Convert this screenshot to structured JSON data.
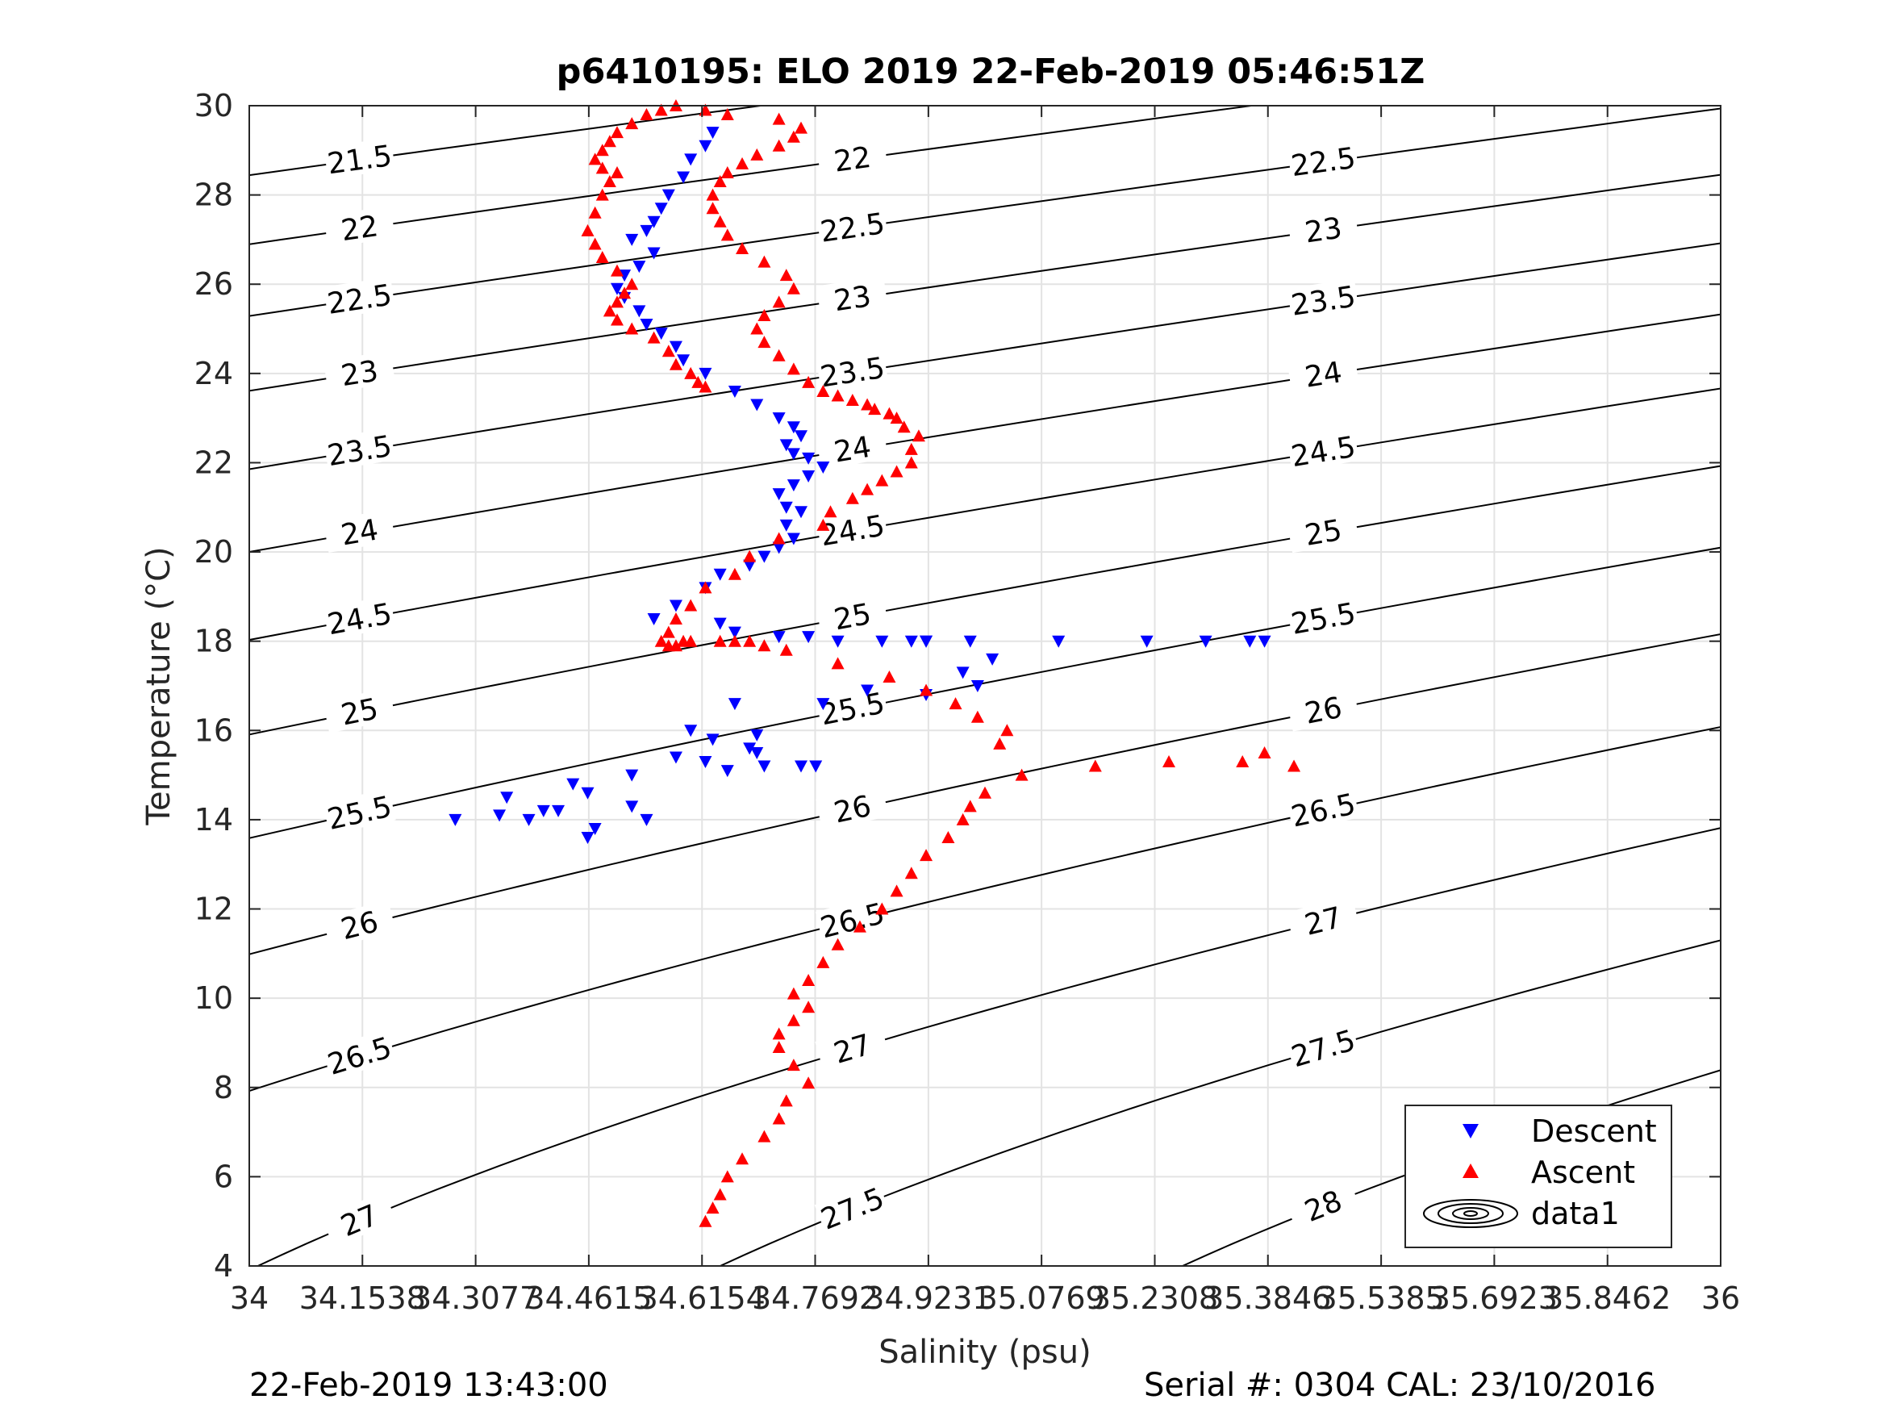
{
  "chart_data": {
    "type": "scatter",
    "title": "p6410195: ELO 2019 22-Feb-2019 05:46:51Z",
    "xlabel": "Salinity (psu)",
    "ylabel": "Temperature (°C)",
    "xlim": [
      34,
      36
    ],
    "ylim": [
      4,
      30
    ],
    "xticks": [
      34,
      34.1538,
      34.3077,
      34.4615,
      34.6154,
      34.7692,
      34.9231,
      35.0769,
      35.2308,
      35.3846,
      35.5385,
      35.6923,
      35.8462,
      36
    ],
    "xtick_labels": [
      "34",
      "34.1538",
      "34.3077",
      "34.4615",
      "34.6154",
      "34.7692",
      "34.9231",
      "35.0769",
      "35.2308",
      "35.3846",
      "35.5385",
      "35.6923",
      "35.8462",
      "36"
    ],
    "yticks": [
      4,
      6,
      8,
      10,
      12,
      14,
      16,
      18,
      20,
      22,
      24,
      26,
      28,
      30
    ],
    "ytick_labels": [
      "4",
      "6",
      "8",
      "10",
      "12",
      "14",
      "16",
      "18",
      "20",
      "22",
      "24",
      "26",
      "28",
      "30"
    ],
    "grid": true,
    "legend": {
      "position": "bottom-right",
      "entries": [
        {
          "label": "Descent",
          "marker": "triangle-down",
          "color": "#0000ff"
        },
        {
          "label": "Ascent",
          "marker": "triangle-up",
          "color": "#ff0000"
        },
        {
          "label": "data1",
          "marker": "contour",
          "color": "#000000"
        }
      ]
    },
    "contours": {
      "levels": [
        21.5,
        22,
        22.5,
        23,
        23.5,
        24,
        24.5,
        25,
        25.5,
        26,
        26.5,
        27,
        27.5,
        28
      ],
      "labels": [
        "21.5",
        "22",
        "22.5",
        "23",
        "23.5",
        "24",
        "24.5",
        "25",
        "25.5",
        "26",
        "26.5",
        "27",
        "27.5",
        "28"
      ],
      "color": "#000000"
    },
    "series": [
      {
        "name": "Descent",
        "marker": "triangle-down",
        "color": "#0000ff",
        "x": [
          34.63,
          34.62,
          34.6,
          34.59,
          34.57,
          34.56,
          34.55,
          34.54,
          34.52,
          34.55,
          34.53,
          34.51,
          34.5,
          34.51,
          34.53,
          34.54,
          34.56,
          34.58,
          34.59,
          34.62,
          34.66,
          34.69,
          34.72,
          34.74,
          34.75,
          34.73,
          34.74,
          34.76,
          34.78,
          34.76,
          34.74,
          34.72,
          34.73,
          34.75,
          34.73,
          34.74,
          34.72,
          34.7,
          34.68,
          34.64,
          34.62,
          34.58,
          34.55,
          34.64,
          34.66,
          34.72,
          34.76,
          34.8,
          34.86,
          34.92,
          34.9,
          34.92,
          34.98,
          35.1,
          35.22,
          35.3,
          35.36,
          35.38,
          35.01,
          34.97,
          34.99,
          34.92,
          34.84,
          34.78,
          34.69,
          34.68,
          34.63,
          34.6,
          34.58,
          34.62,
          34.65,
          34.7,
          34.75,
          34.77,
          34.69,
          34.66,
          34.52,
          34.44,
          34.42,
          34.38,
          34.46,
          34.47,
          34.35,
          34.34,
          34.28,
          34.4,
          34.46,
          34.54,
          34.52
        ],
        "y": [
          29.4,
          29.1,
          28.8,
          28.4,
          28.0,
          27.7,
          27.4,
          27.2,
          27.0,
          26.7,
          26.4,
          26.2,
          25.9,
          25.7,
          25.4,
          25.1,
          24.9,
          24.6,
          24.3,
          24.0,
          23.6,
          23.3,
          23.0,
          22.8,
          22.6,
          22.4,
          22.2,
          22.1,
          21.9,
          21.7,
          21.5,
          21.3,
          21.0,
          20.9,
          20.6,
          20.3,
          20.1,
          19.9,
          19.7,
          19.5,
          19.2,
          18.8,
          18.5,
          18.4,
          18.2,
          18.1,
          18.1,
          18.0,
          18.0,
          18.0,
          18.0,
          18.0,
          18.0,
          18.0,
          18.0,
          18.0,
          18.0,
          18.0,
          17.6,
          17.3,
          17.0,
          16.8,
          16.9,
          16.6,
          15.9,
          15.6,
          15.8,
          16.0,
          15.4,
          15.3,
          15.1,
          15.2,
          15.2,
          15.2,
          15.5,
          16.6,
          15.0,
          14.8,
          14.2,
          14.0,
          14.6,
          13.8,
          14.5,
          14.1,
          14.0,
          14.2,
          13.6,
          14.0,
          14.3
        ]
      },
      {
        "name": "Ascent",
        "marker": "triangle-up",
        "color": "#ff0000",
        "x": [
          34.62,
          34.63,
          34.64,
          34.65,
          34.67,
          34.7,
          34.72,
          34.73,
          34.76,
          34.74,
          34.72,
          34.72,
          34.74,
          34.76,
          34.74,
          34.76,
          34.78,
          34.8,
          34.83,
          34.86,
          34.88,
          34.9,
          34.92,
          34.95,
          34.97,
          34.98,
          35.0,
          35.05,
          35.15,
          35.25,
          35.35,
          35.42,
          35.38,
          35.02,
          35.03,
          34.99,
          34.96,
          34.92,
          34.87,
          34.8,
          34.73,
          34.7,
          34.68,
          34.66,
          34.64,
          34.6,
          34.59,
          34.58,
          34.57,
          34.56,
          34.57,
          34.58,
          34.6,
          34.62,
          34.66,
          34.68,
          34.72,
          34.78,
          34.79,
          34.82,
          34.84,
          34.86,
          34.88,
          34.9,
          34.9,
          34.91,
          34.89,
          34.88,
          34.87,
          34.85,
          34.84,
          34.82,
          34.8,
          34.78,
          34.76,
          34.74,
          34.72,
          34.7,
          34.69,
          34.7,
          34.72,
          34.74,
          34.73,
          34.7,
          34.67,
          34.65,
          34.64,
          34.63,
          34.63,
          34.64,
          34.65,
          34.67,
          34.69,
          34.72,
          34.74,
          34.75,
          34.72,
          34.65,
          34.62,
          34.58,
          34.56,
          34.54,
          34.52,
          34.5,
          34.49,
          34.48,
          34.47,
          34.48,
          34.5,
          34.49,
          34.48,
          34.47,
          34.46,
          34.47,
          34.48,
          34.5,
          34.52,
          34.51,
          34.5,
          34.49,
          34.5,
          34.52,
          34.55,
          34.57,
          34.58,
          34.6,
          34.61,
          34.62
        ],
        "y": [
          5.0,
          5.3,
          5.6,
          6.0,
          6.4,
          6.9,
          7.3,
          7.7,
          8.1,
          8.5,
          8.9,
          9.2,
          9.5,
          9.8,
          10.1,
          10.4,
          10.8,
          11.2,
          11.6,
          12.0,
          12.4,
          12.8,
          13.2,
          13.6,
          14.0,
          14.3,
          14.6,
          15.0,
          15.2,
          15.3,
          15.3,
          15.2,
          15.5,
          15.7,
          16.0,
          16.3,
          16.6,
          16.9,
          17.2,
          17.5,
          17.8,
          17.9,
          18.0,
          18.0,
          18.0,
          18.0,
          18.0,
          17.9,
          17.9,
          18.0,
          18.2,
          18.5,
          18.8,
          19.2,
          19.5,
          19.9,
          20.3,
          20.6,
          20.9,
          21.2,
          21.4,
          21.6,
          21.8,
          22.0,
          22.3,
          22.6,
          22.8,
          23.0,
          23.1,
          23.2,
          23.3,
          23.4,
          23.5,
          23.6,
          23.8,
          24.1,
          24.4,
          24.7,
          25.0,
          25.3,
          25.6,
          25.9,
          26.2,
          26.5,
          26.8,
          27.1,
          27.4,
          27.7,
          28.0,
          28.3,
          28.5,
          28.7,
          28.9,
          29.1,
          29.3,
          29.5,
          29.7,
          29.8,
          29.9,
          30.0,
          29.9,
          29.8,
          29.6,
          29.4,
          29.2,
          29.0,
          28.8,
          28.6,
          28.5,
          28.3,
          28.0,
          27.6,
          27.2,
          26.9,
          26.6,
          26.3,
          26.0,
          25.8,
          25.6,
          25.4,
          25.2,
          25.0,
          24.8,
          24.5,
          24.2,
          24.0,
          23.8,
          23.7
        ]
      }
    ]
  },
  "footer": {
    "left": "22-Feb-2019 13:43:00",
    "right": "Serial #: 0304  CAL: 23/10/2016"
  }
}
